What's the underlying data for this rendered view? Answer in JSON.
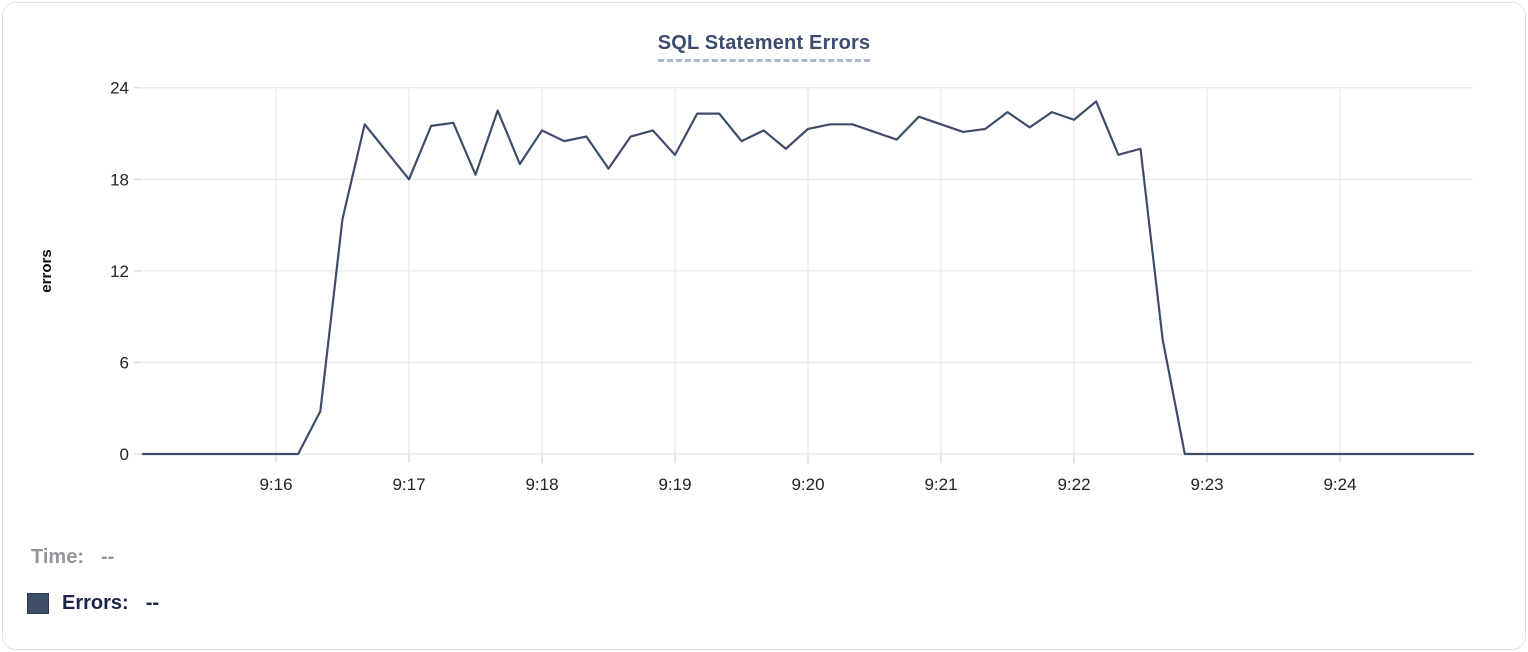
{
  "header": {
    "title": "SQL Statement Errors"
  },
  "legend": {
    "rows": [
      {
        "label": "Time:",
        "value": "--"
      },
      {
        "label": "Errors:",
        "value": "--",
        "swatch_color": "#3e4d69"
      }
    ]
  },
  "colors": {
    "line": "#3e4d6a",
    "swatch": "#3e4d69",
    "title_text": "#3d4c6e",
    "title_underline": "#aab4ca",
    "grid": "#ebebeb",
    "tick": "#dcdcdc",
    "axis_text": "#232323",
    "muted_text": "#94959b",
    "legend_dark_text": "#1b2446",
    "card_border": "#dedede"
  },
  "chart_data": {
    "type": "line",
    "title": "SQL Statement Errors",
    "xlabel": "",
    "ylabel": "errors",
    "ylim": [
      0,
      24
    ],
    "yticks": [
      0,
      6,
      12,
      18,
      24
    ],
    "grid": true,
    "legend_position": "bottom-left",
    "x_range": [
      "9:15:00",
      "9:25:00"
    ],
    "interval_seconds": 10,
    "xticks": [
      {
        "label": "9:16",
        "offset_seconds": 60
      },
      {
        "label": "9:17",
        "offset_seconds": 120
      },
      {
        "label": "9:18",
        "offset_seconds": 180
      },
      {
        "label": "9:19",
        "offset_seconds": 240
      },
      {
        "label": "9:20",
        "offset_seconds": 300
      },
      {
        "label": "9:21",
        "offset_seconds": 360
      },
      {
        "label": "9:22",
        "offset_seconds": 420
      },
      {
        "label": "9:23",
        "offset_seconds": 480
      },
      {
        "label": "9:24",
        "offset_seconds": 540
      }
    ],
    "series": [
      {
        "name": "Errors",
        "color": "#3e4d6a",
        "x_times": [
          "9:15:00",
          "9:15:10",
          "9:15:20",
          "9:15:30",
          "9:15:40",
          "9:15:50",
          "9:16:00",
          "9:16:10",
          "9:16:20",
          "9:16:30",
          "9:16:40",
          "9:16:50",
          "9:17:00",
          "9:17:10",
          "9:17:20",
          "9:17:30",
          "9:17:40",
          "9:17:50",
          "9:18:00",
          "9:18:10",
          "9:18:20",
          "9:18:30",
          "9:18:40",
          "9:18:50",
          "9:19:00",
          "9:19:10",
          "9:19:20",
          "9:19:30",
          "9:19:40",
          "9:19:50",
          "9:20:00",
          "9:20:10",
          "9:20:20",
          "9:20:30",
          "9:20:40",
          "9:20:50",
          "9:21:00",
          "9:21:10",
          "9:21:20",
          "9:21:30",
          "9:21:40",
          "9:21:50",
          "9:22:00",
          "9:22:10",
          "9:22:20",
          "9:22:30",
          "9:22:40",
          "9:22:50",
          "9:23:00",
          "9:23:10",
          "9:23:20",
          "9:23:30",
          "9:23:40",
          "9:23:50",
          "9:24:00",
          "9:24:10",
          "9:24:20",
          "9:24:30",
          "9:24:40",
          "9:24:50",
          "9:25:00"
        ],
        "values": [
          0,
          0,
          0,
          0,
          0,
          0,
          0,
          0,
          2.8,
          15.4,
          21.6,
          19.8,
          18,
          21.5,
          21.7,
          18.3,
          22.5,
          19,
          21.2,
          20.5,
          20.8,
          18.7,
          20.8,
          21.2,
          19.6,
          22.3,
          22.3,
          20.5,
          21.2,
          20,
          21.3,
          21.6,
          21.6,
          21.1,
          20.6,
          22.1,
          21.6,
          21.1,
          21.3,
          22.4,
          21.4,
          22.4,
          21.9,
          23.1,
          19.6,
          20,
          7.5,
          0,
          0,
          0,
          0,
          0,
          0,
          0,
          0,
          0,
          0,
          0,
          0,
          0,
          0
        ]
      }
    ]
  }
}
